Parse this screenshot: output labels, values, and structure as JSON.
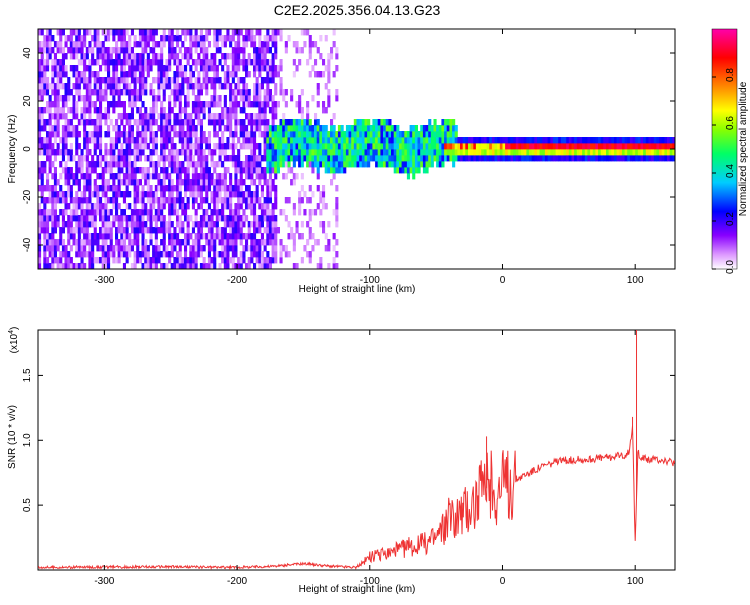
{
  "title": "C2E2.2025.356.04.13.G23",
  "chart_data": [
    {
      "type": "heatmap",
      "title": "C2E2.2025.356.04.13.G23",
      "xlabel": "Height of straight line (km)",
      "ylabel": "Frequency (Hz)",
      "xlim": [
        -350,
        130
      ],
      "ylim": [
        -50,
        50
      ],
      "xticks": [
        "-300",
        "-200",
        "-100",
        "0",
        "100"
      ],
      "yticks": [
        "-40",
        "-20",
        "0",
        "20",
        "40"
      ],
      "colorbar": {
        "label": "Normalized spectral amplitude",
        "range": [
          0,
          1
        ],
        "ticks": [
          "0.0",
          "0.2",
          "0.4",
          "0.6",
          "0.8"
        ],
        "colormap": [
          "#ffffff",
          "#cc66ff",
          "#8800ff",
          "#0000ff",
          "#00ccff",
          "#00ff66",
          "#88ff00",
          "#ffff00",
          "#ff8800",
          "#ff0000",
          "#ff00aa"
        ]
      },
      "regions": [
        {
          "x_from": -350,
          "x_to": -170,
          "description_level": 0.18,
          "spread_hz": 50
        },
        {
          "x_from": -170,
          "x_to": -125,
          "description_level": 0.1,
          "spread_hz": 50
        },
        {
          "x_from": -175,
          "x_to": -40,
          "description_level": 0.45,
          "spread_hz": 8
        },
        {
          "x_from": -40,
          "x_to": 130,
          "description_level": 0.9,
          "spread_hz": 3
        }
      ]
    },
    {
      "type": "line",
      "xlabel": "Height of straight line (km)",
      "ylabel": "SNR (10 * v/v)",
      "yscale_label": "(x10",
      "yscale_exp": "4",
      "xlim": [
        -350,
        130
      ],
      "ylim": [
        0,
        1.85
      ],
      "xticks": [
        "-300",
        "-200",
        "-100",
        "0",
        "100"
      ],
      "yticks": [
        "0.5",
        "1.0",
        "1.5"
      ],
      "line_color": "#ee3333",
      "x": [
        -350,
        -250,
        -200,
        -170,
        -150,
        -130,
        -110,
        -100,
        -90,
        -80,
        -70,
        -60,
        -50,
        -40,
        -30,
        -20,
        -15,
        -10,
        -5,
        0,
        10,
        20,
        30,
        40,
        50,
        60,
        70,
        80,
        90,
        95,
        98,
        100,
        102,
        105,
        110,
        120,
        130
      ],
      "y": [
        0.02,
        0.025,
        0.02,
        0.03,
        0.05,
        0.03,
        0.02,
        0.1,
        0.12,
        0.15,
        0.18,
        0.2,
        0.25,
        0.4,
        0.45,
        0.55,
        0.6,
        0.65,
        0.62,
        0.65,
        0.7,
        0.75,
        0.8,
        0.83,
        0.85,
        0.85,
        0.86,
        0.87,
        0.88,
        0.9,
        1.1,
        0.2,
        0.9,
        0.87,
        0.85,
        0.85,
        0.82
      ],
      "spikes": [
        {
          "x": -12,
          "y": 1.03
        },
        {
          "x": 101,
          "y": 1.85
        },
        {
          "x": 98,
          "y": 1.18
        }
      ]
    }
  ]
}
